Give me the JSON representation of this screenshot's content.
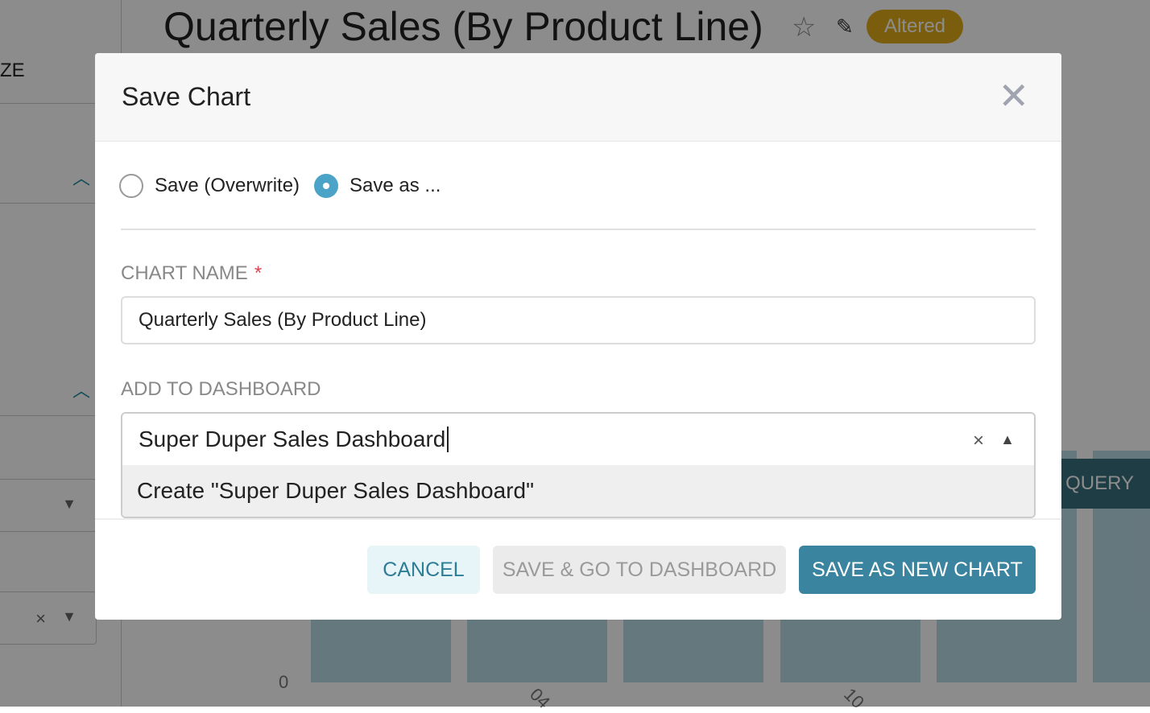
{
  "background": {
    "title": "Quarterly Sales (By Product Line)",
    "badge": "Altered",
    "sidebar_text": "ZE",
    "run_button": "QUERY",
    "y_axis_zero": "0",
    "x_ticks": [
      "04",
      "10"
    ],
    "clear_glyph": "×"
  },
  "modal": {
    "title": "Save Chart",
    "close_glyph": "✕",
    "radio_overwrite": "Save (Overwrite)",
    "radio_save_as": "Save as ...",
    "selected_radio": "Save as ...",
    "chart_name_label": "Chart Name",
    "required_mark": "*",
    "chart_name_value": "Quarterly Sales (By Product Line)",
    "dashboard_label": "Add to Dashboard",
    "dashboard_value": "Super Duper Sales Dashboard",
    "clear_glyph": "×",
    "dropdown_option": "Create \"Super Duper Sales Dashboard\"",
    "buttons": {
      "cancel": "Cancel",
      "save_go": "Save & go to dashboard",
      "save_new": "Save as new chart"
    }
  },
  "colors": {
    "accent": "#3a84a0",
    "badge": "#e0a91a",
    "radio": "#4ba3c7",
    "required": "#e04355"
  }
}
